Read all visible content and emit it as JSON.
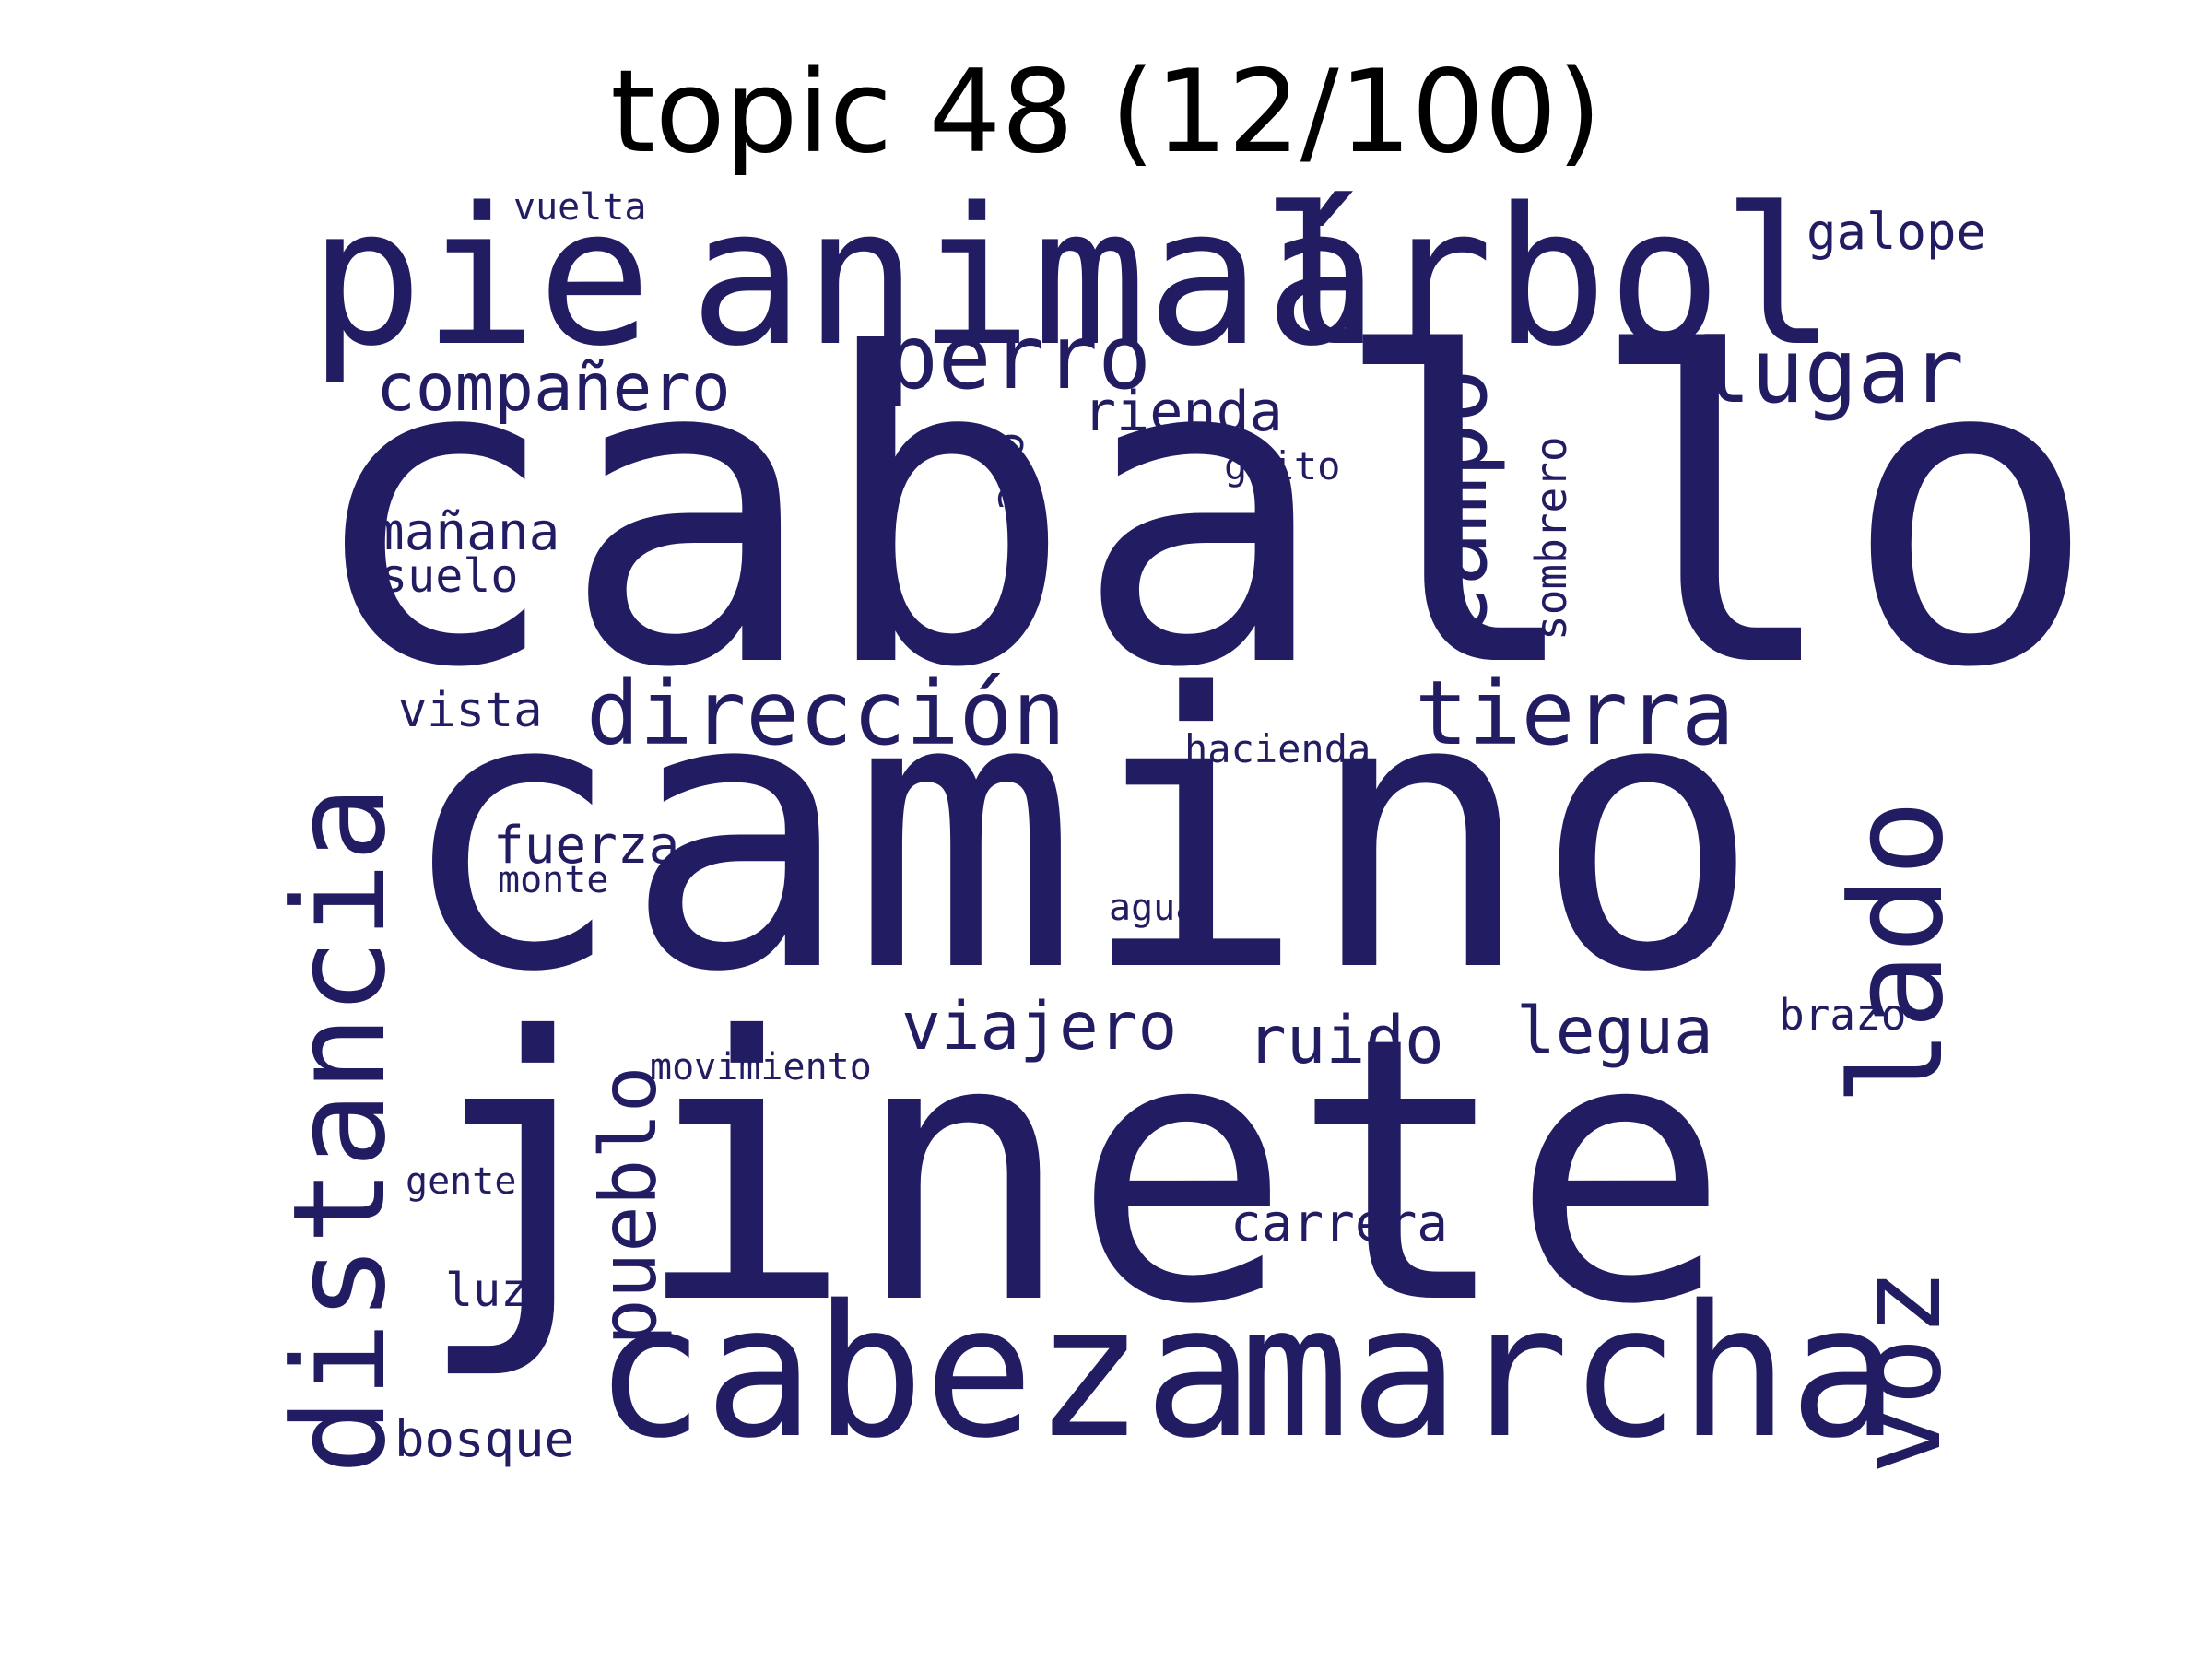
{
  "title": "topic 48 (12/100)",
  "color": "#221d63",
  "words": {
    "caballo": "caballo",
    "camino": "camino",
    "jinete": "jinete",
    "pie": "pie",
    "animal": "animal",
    "arbol": "árbol",
    "cabeza": "cabeza",
    "marcha": "marcha",
    "distancia": "distancia",
    "lado": "lado",
    "voz": "voz",
    "campo": "campo",
    "perro": "perro",
    "lugar": "lugar",
    "direccion": "dirección",
    "tierra": "tierra",
    "companero": "compañero",
    "pueblo": "pueblo",
    "viajero": "viajero",
    "ruido": "ruido",
    "legua": "legua",
    "rienda": "rienda",
    "manana": "mañana",
    "carrera": "carrera",
    "fuerza": "fuerza",
    "galope": "galope",
    "vista": "vista",
    "suelo": "suelo",
    "bosque": "bosque",
    "sombrero": "sombrero",
    "amo": "amo",
    "luz": "luz",
    "brazo": "brazo",
    "vuelta": "vuelta",
    "grito": "grito",
    "hacienda": "hacienda",
    "monte": "monte",
    "agua": "agua",
    "movimiento": "movimiento",
    "gente": "gente"
  }
}
